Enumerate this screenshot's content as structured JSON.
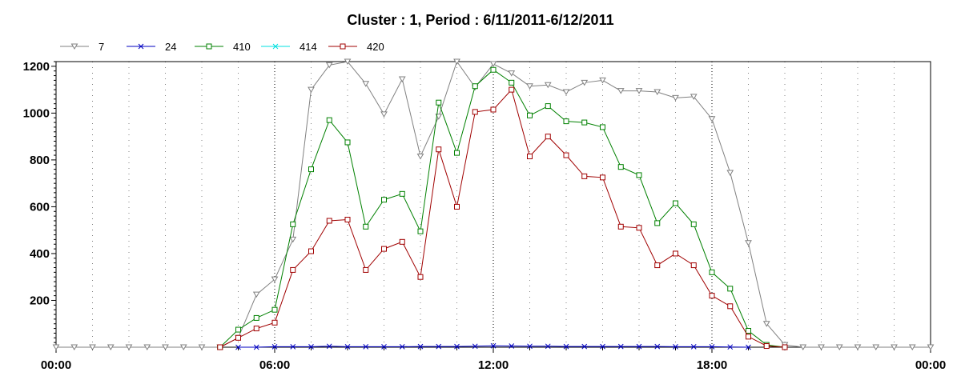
{
  "chart_data": {
    "type": "line",
    "title": "Cluster : 1, Period : 6/11/2011-6/12/2011",
    "xlabel": "",
    "ylabel": "",
    "x_tick_labels": [
      "00:00",
      "06:00",
      "12:00",
      "18:00",
      "00:00"
    ],
    "y_tick_labels": [
      "200",
      "400",
      "600",
      "800",
      "1000",
      "1200"
    ],
    "xlim_hours": [
      0,
      24
    ],
    "ylim": [
      0,
      1220
    ],
    "grid": true,
    "legend_position": "top-left",
    "x_hours": [
      0,
      0.5,
      1,
      1.5,
      2,
      2.5,
      3,
      3.5,
      4,
      4.5,
      5,
      5.5,
      6,
      6.5,
      7,
      7.5,
      8,
      8.5,
      9,
      9.5,
      10,
      10.5,
      11,
      11.5,
      12,
      12.5,
      13,
      13.5,
      14,
      14.5,
      15,
      15.5,
      16,
      16.5,
      17,
      17.5,
      18,
      18.5,
      19,
      19.5,
      20,
      20.5,
      21,
      21.5,
      22,
      22.5,
      23,
      23.5,
      24
    ],
    "series": [
      {
        "name": "7",
        "color": "#808080",
        "marker": "triangle-down",
        "values": [
          0,
          0,
          0,
          0,
          0,
          0,
          0,
          0,
          0,
          0,
          40,
          225,
          290,
          460,
          1100,
          1205,
          1220,
          1125,
          995,
          1145,
          815,
          985,
          1220,
          1110,
          1210,
          1170,
          1115,
          1120,
          1090,
          1130,
          1140,
          1095,
          1095,
          1090,
          1065,
          1070,
          975,
          745,
          445,
          100,
          10,
          0,
          0,
          0,
          0,
          0,
          0,
          0,
          0
        ]
      },
      {
        "name": "24",
        "color": "#0000c0",
        "marker": "x",
        "values": [
          null,
          null,
          null,
          null,
          null,
          null,
          null,
          null,
          null,
          null,
          0,
          0,
          2,
          2,
          2,
          4,
          2,
          2,
          2,
          2,
          3,
          3,
          3,
          4,
          6,
          5,
          4,
          4,
          3,
          3,
          3,
          3,
          3,
          3,
          2,
          2,
          2,
          1,
          0,
          null,
          null,
          null,
          null,
          null,
          null,
          null,
          null,
          null,
          null
        ]
      },
      {
        "name": "410",
        "color": "#008000",
        "marker": "square",
        "values": [
          null,
          null,
          null,
          null,
          null,
          null,
          null,
          null,
          null,
          0,
          75,
          125,
          160,
          525,
          760,
          970,
          875,
          515,
          630,
          655,
          495,
          1045,
          830,
          1115,
          1185,
          1130,
          990,
          1030,
          965,
          960,
          940,
          770,
          735,
          530,
          615,
          525,
          320,
          250,
          70,
          10,
          0,
          null,
          null,
          null,
          null,
          null,
          null,
          null,
          null
        ]
      },
      {
        "name": "414",
        "color": "#00e0e0",
        "marker": "x",
        "values": []
      },
      {
        "name": "420",
        "color": "#a00000",
        "marker": "square",
        "values": [
          null,
          null,
          null,
          null,
          null,
          null,
          null,
          null,
          null,
          0,
          40,
          80,
          105,
          330,
          410,
          540,
          545,
          330,
          420,
          450,
          300,
          845,
          600,
          1005,
          1015,
          1100,
          815,
          900,
          820,
          730,
          725,
          515,
          510,
          350,
          400,
          350,
          220,
          175,
          45,
          5,
          0,
          null,
          null,
          null,
          null,
          null,
          null,
          null,
          null
        ]
      }
    ]
  }
}
